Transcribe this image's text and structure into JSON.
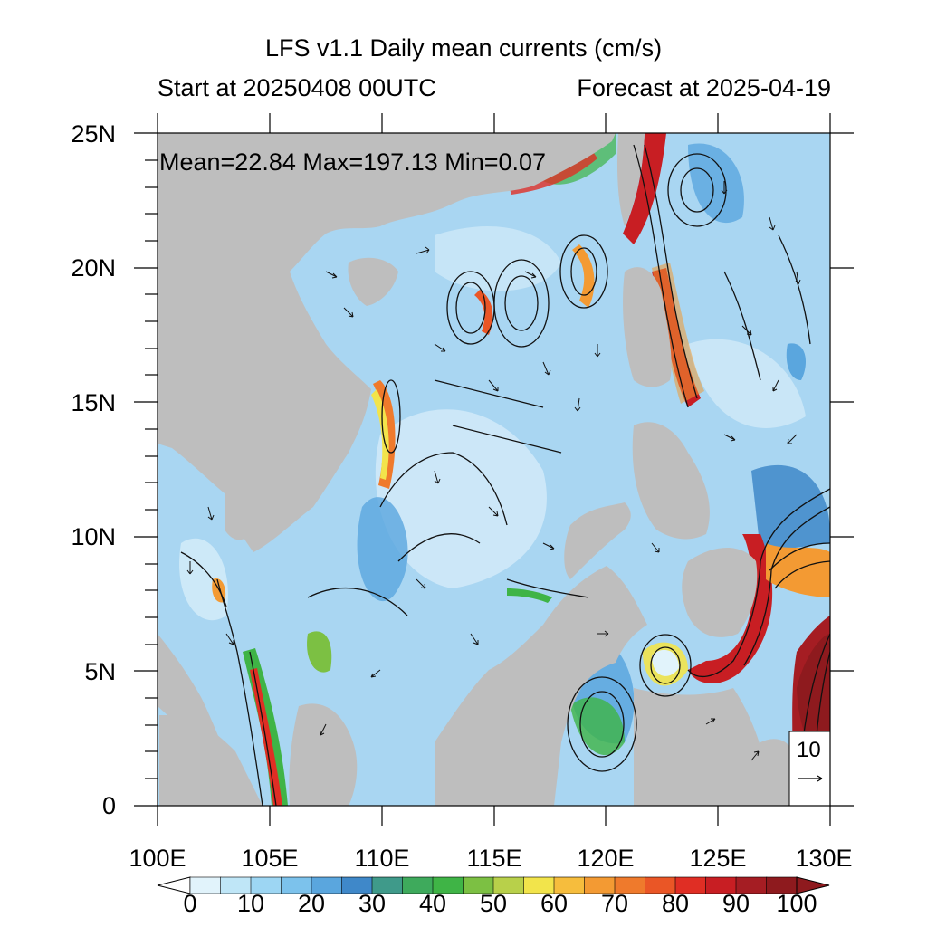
{
  "map": {
    "title": "LFS v1.1 Daily mean currents (cm/s)",
    "start_label": "Start at 20250408 00UTC",
    "forecast_label": "Forecast at 2025-04-19",
    "stats": "Mean=22.84  Max=197.13  Min=0.07",
    "lon_range": [
      100,
      130
    ],
    "lat_range": [
      0,
      25
    ],
    "lon_ticks": [
      "100E",
      "105E",
      "110E",
      "115E",
      "120E",
      "125E",
      "130E"
    ],
    "lat_ticks": [
      "0",
      "5N",
      "10N",
      "15N",
      "20N",
      "25N"
    ],
    "reference_vector": "10",
    "land_color": "#bebebe",
    "colorbar": {
      "labels": [
        "0",
        "10",
        "20",
        "30",
        "40",
        "50",
        "60",
        "70",
        "80",
        "90",
        "100"
      ],
      "colors": [
        "#e1f3fb",
        "#bfe6f7",
        "#9dd6f3",
        "#7cc2ec",
        "#5aa6de",
        "#3f88c9",
        "#3f9a8a",
        "#3eaa5c",
        "#3fb446",
        "#7cc043",
        "#b8d04a",
        "#f2e44b",
        "#f6bd3d",
        "#f39a33",
        "#ef7a2c",
        "#ea5626",
        "#e02e24",
        "#c81e23",
        "#a51d23",
        "#8e1a1e"
      ]
    }
  }
}
